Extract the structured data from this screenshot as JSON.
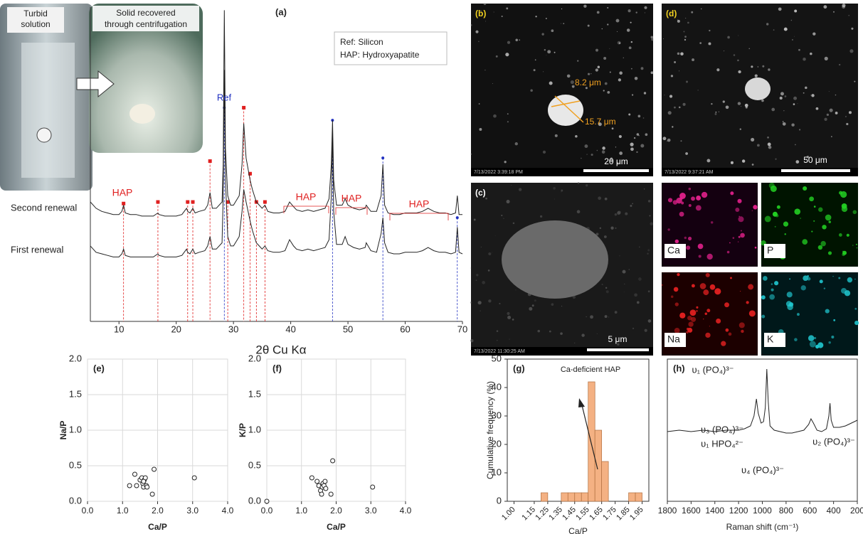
{
  "photo": {
    "left_label": [
      "Turbid",
      "solution"
    ],
    "inset_label": [
      "Solid recovered",
      "through centrifugation"
    ]
  },
  "sem": {
    "b": {
      "label": "(b)",
      "dims": [
        "8.2 μm",
        "15.7 μm"
      ],
      "scale": "20 μm",
      "info": "7/13/2022 3:39:18 PM"
    },
    "c": {
      "label": "(c)",
      "scale": "5 μm",
      "info": "7/13/2022 11:30:25 AM"
    },
    "d": {
      "label": "(d)",
      "scale": "50 μm",
      "info": "7/13/2022 9:37:21 AM"
    },
    "eds": [
      {
        "label": "Ca",
        "color": "#e0208a"
      },
      {
        "label": "P",
        "color": "#22d022"
      },
      {
        "label": "Na",
        "color": "#e02020"
      },
      {
        "label": "K",
        "color": "#20c8d0"
      }
    ]
  },
  "chart_data": [
    {
      "type": "line",
      "title": "(a)",
      "xlabel": "2θ Cu Kα",
      "xlim": [
        5,
        70
      ],
      "xticks": [
        10,
        20,
        30,
        40,
        50,
        60,
        70
      ],
      "ylim": [
        0,
        100
      ],
      "legend_text": [
        "Ref: Silicon",
        "HAP: Hydroxyapatite"
      ],
      "ref_label": "Ref",
      "hap_labels": [
        "HAP",
        "HAP",
        "HAP",
        "HAP"
      ],
      "x": [
        5,
        6,
        7,
        8,
        9,
        10,
        10.5,
        10.8,
        11.1,
        12,
        13,
        14,
        15,
        16,
        16.8,
        17,
        18,
        19,
        20,
        21,
        21.8,
        22,
        22.4,
        22.9,
        23.3,
        24,
        25,
        25.5,
        25.9,
        26.3,
        27,
        28,
        28.2,
        28.4,
        28.6,
        29,
        29.5,
        30,
        31,
        31.5,
        31.8,
        32.2,
        32.9,
        33.3,
        34,
        34.5,
        35,
        35.5,
        36,
        37,
        38,
        39,
        39.8,
        40.5,
        41,
        42,
        43,
        44,
        45,
        46,
        46.7,
        47.1,
        47.3,
        47.5,
        48,
        49,
        49.5,
        50,
        51,
        52,
        53,
        53.2,
        54,
        55,
        55.8,
        56.1,
        56.4,
        57,
        58,
        59,
        60,
        61,
        62,
        63,
        64,
        65,
        66,
        67,
        68,
        68.8,
        69.1,
        69.4,
        70
      ],
      "series": [
        {
          "name": "Second renewal",
          "color": "#222222",
          "values": [
            38,
            36,
            35,
            34.5,
            34,
            34,
            35,
            37,
            34.5,
            34,
            34,
            33.5,
            33.5,
            33.5,
            34.5,
            34,
            33.5,
            33.5,
            33.5,
            34,
            36,
            35,
            34.5,
            36,
            34.5,
            35,
            35.5,
            37,
            41,
            36,
            36,
            38,
            50,
            99,
            55,
            40,
            37,
            37,
            40,
            50,
            63,
            52,
            45,
            42,
            38,
            37,
            36,
            37,
            35,
            34.5,
            34.5,
            35,
            38,
            36.5,
            35.5,
            35,
            35.5,
            35,
            35.5,
            36,
            39,
            50,
            64,
            45,
            37,
            37,
            39,
            37,
            36,
            35.5,
            36,
            37,
            35,
            35,
            40,
            50,
            37,
            34.5,
            34,
            34,
            34.5,
            34.5,
            34.5,
            35,
            36,
            35,
            34.5,
            34.5,
            34,
            34.5,
            40,
            34,
            34
          ]
        },
        {
          "name": "First renewal",
          "color": "#222222",
          "values": [
            24,
            22,
            21.5,
            21,
            20.5,
            20.5,
            21.5,
            23,
            21,
            20.5,
            20.5,
            20.5,
            20.5,
            20.5,
            21.5,
            21,
            20.5,
            20.5,
            20.5,
            21,
            23,
            22,
            21.5,
            23,
            21.5,
            22,
            22.5,
            24,
            27,
            23,
            23,
            25,
            40,
            80,
            45,
            27,
            24,
            24,
            27,
            35,
            42,
            38,
            32,
            29,
            25,
            24,
            23,
            24,
            22.5,
            22,
            22,
            22.5,
            26,
            24,
            23,
            22.5,
            23,
            22.5,
            23,
            23.5,
            26,
            40,
            60,
            35,
            24.5,
            24.5,
            27,
            24.5,
            23.5,
            23,
            23.5,
            25,
            22.5,
            22,
            28,
            33,
            25,
            22,
            21.5,
            21.5,
            22,
            22,
            22,
            22.5,
            23.5,
            22.5,
            22,
            22,
            21.5,
            22,
            30,
            22,
            21.5
          ]
        }
      ],
      "hap_markers": {
        "color": "#e02020",
        "x": [
          10.8,
          16.8,
          22,
          22.9,
          25.9,
          29,
          31.8,
          32.9,
          34,
          35.5
        ],
        "y": [
          37.5,
          38,
          38,
          38,
          51,
          38,
          68,
          47,
          38,
          38
        ]
      },
      "ref_markers": {
        "color": "#2030c0",
        "x": [
          28.4,
          47.3,
          56.1,
          69.1
        ],
        "y": [
          68,
          64,
          52,
          33
        ]
      }
    },
    {
      "type": "scatter",
      "title": "(e)",
      "xlabel": "Ca/P",
      "ylabel": "Na/P",
      "xlim": [
        0,
        4
      ],
      "ylim": [
        0,
        2
      ],
      "grid": true,
      "xticks": [
        {
          "value": 0,
          "label": "0.0"
        },
        {
          "value": 1,
          "label": "1.0"
        },
        {
          "value": 2,
          "label": "2.0"
        },
        {
          "value": 3,
          "label": "3.0"
        },
        {
          "value": 4,
          "label": "4.0"
        }
      ],
      "yticks": [
        {
          "value": 0,
          "label": "0.0"
        },
        0.5,
        {
          "value": 1,
          "label": "1.0"
        },
        1.5,
        {
          "value": 2,
          "label": "2.0"
        }
      ],
      "x": [
        1.2,
        1.35,
        1.4,
        1.5,
        1.55,
        1.58,
        1.6,
        1.62,
        1.65,
        1.6,
        1.68,
        1.7,
        1.85,
        1.9,
        3.05
      ],
      "y": [
        0.22,
        0.38,
        0.22,
        0.3,
        0.33,
        0.25,
        0.2,
        0.3,
        0.33,
        0.28,
        0.22,
        0.2,
        0.1,
        0.45,
        0.33
      ]
    },
    {
      "type": "scatter",
      "title": "(f)",
      "xlabel": "Ca/P",
      "ylabel": "K/P",
      "xlim": [
        0,
        4
      ],
      "ylim": [
        0,
        2
      ],
      "grid": true,
      "xticks": [
        {
          "value": 0,
          "label": "0.0"
        },
        {
          "value": 1,
          "label": "1.0"
        },
        {
          "value": 2,
          "label": "2.0"
        },
        {
          "value": 3,
          "label": "3.0"
        },
        {
          "value": 4,
          "label": "4.0"
        }
      ],
      "yticks": [
        {
          "value": 0,
          "label": "0.0"
        },
        0.5,
        {
          "value": 1,
          "label": "1.0"
        },
        1.5,
        {
          "value": 2,
          "label": "2.0"
        }
      ],
      "x": [
        0,
        1.3,
        1.45,
        1.5,
        1.55,
        1.6,
        1.62,
        1.65,
        1.58,
        1.7,
        1.68,
        1.85,
        1.9,
        3.05
      ],
      "y": [
        0,
        0.33,
        0.28,
        0.22,
        0.15,
        0.2,
        0.25,
        0.22,
        0.1,
        0.18,
        0.28,
        0.1,
        0.57,
        0.2
      ]
    },
    {
      "type": "histogram",
      "title": "(g)",
      "xlabel": "Ca/P",
      "ylabel": "Cumulative frequency (%)",
      "annotation": "Ca-deficient HAP",
      "color": "#f4b183",
      "xlim": [
        0.95,
        2.0
      ],
      "ylim": [
        0,
        50
      ],
      "yticks": [
        0,
        10,
        20,
        30,
        40,
        50
      ],
      "xticks": [
        {
          "value": 1.0,
          "label": "1.00"
        },
        1.15,
        1.25,
        1.35,
        1.45,
        1.55,
        1.65,
        1.75,
        1.85,
        1.95
      ],
      "bins": [
        1.15,
        1.2,
        1.25,
        1.3,
        1.35,
        1.4,
        1.45,
        1.5,
        1.55,
        1.6,
        1.65,
        1.7,
        1.75,
        1.8,
        1.85,
        1.9,
        1.95
      ],
      "counts": [
        0,
        3,
        0,
        0,
        3,
        3,
        3,
        3,
        42,
        25,
        14,
        0,
        0,
        0,
        3,
        3
      ]
    },
    {
      "type": "line",
      "title": "(h)",
      "xlabel": "Raman shift (cm⁻¹)",
      "xlim": [
        1800,
        200
      ],
      "ylim": [
        0,
        1
      ],
      "xticks": [
        1800,
        1600,
        1400,
        1200,
        1000,
        800,
        600,
        400,
        200
      ],
      "annotations": [
        "υ₁ (PO₄)³⁻",
        "υ₃ (PO₄)³⁻",
        "υ₁ HPO₄²⁻",
        "υ₄ (PO₄)³⁻",
        "υ₂ (PO₄)³⁻"
      ],
      "x": [
        1800,
        1700,
        1600,
        1500,
        1400,
        1300,
        1200,
        1150,
        1100,
        1070,
        1050,
        1035,
        1010,
        990,
        975,
        962,
        950,
        935,
        900,
        850,
        800,
        750,
        700,
        650,
        610,
        590,
        570,
        540,
        500,
        460,
        440,
        430,
        420,
        400,
        350,
        300,
        250,
        200
      ],
      "series": [
        {
          "name": null,
          "color": "#222222",
          "values": [
            0.49,
            0.5,
            0.49,
            0.5,
            0.49,
            0.5,
            0.5,
            0.51,
            0.53,
            0.6,
            0.72,
            0.62,
            0.55,
            0.56,
            0.66,
            0.93,
            0.7,
            0.53,
            0.5,
            0.49,
            0.48,
            0.48,
            0.49,
            0.5,
            0.54,
            0.58,
            0.55,
            0.5,
            0.49,
            0.51,
            0.6,
            0.69,
            0.57,
            0.52,
            0.52,
            0.53,
            0.55,
            0.57
          ]
        }
      ]
    }
  ]
}
